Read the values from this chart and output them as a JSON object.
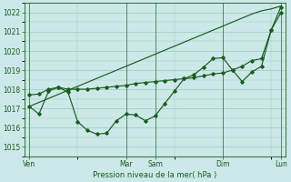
{
  "title": "Pression niveau de la mer( hPa )",
  "background_color": "#cce8e8",
  "grid_color": "#99ccbb",
  "line_color": "#1a5c20",
  "ylim": [
    1014.5,
    1022.5
  ],
  "yticks": [
    1015,
    1016,
    1017,
    1018,
    1019,
    1020,
    1021,
    1022
  ],
  "xtick_labels": [
    "Ven",
    "Mar",
    "Sam",
    "Dim",
    "Lun"
  ],
  "xtick_positions": [
    0,
    10,
    13,
    20,
    26
  ],
  "vline_positions": [
    0,
    10,
    13,
    20,
    26
  ],
  "n_points": 27,
  "line_straight": [
    1017.1,
    1017.31,
    1017.52,
    1017.73,
    1017.94,
    1018.15,
    1018.36,
    1018.57,
    1018.78,
    1018.99,
    1019.2,
    1019.41,
    1019.62,
    1019.83,
    1020.04,
    1020.25,
    1020.46,
    1020.67,
    1020.88,
    1021.09,
    1021.3,
    1021.51,
    1021.72,
    1021.93,
    1022.1,
    1022.2,
    1022.35
  ],
  "line_mid": [
    1017.7,
    1017.75,
    1018.0,
    1018.1,
    1018.0,
    1018.0,
    1018.0,
    1018.05,
    1018.1,
    1018.15,
    1018.2,
    1018.3,
    1018.35,
    1018.4,
    1018.45,
    1018.5,
    1018.55,
    1018.6,
    1018.7,
    1018.8,
    1018.85,
    1019.0,
    1019.2,
    1019.5,
    1019.6,
    1021.1,
    1022.0
  ],
  "line_dip": [
    1017.1,
    1016.7,
    1017.9,
    1018.1,
    1017.85,
    1016.3,
    1015.85,
    1015.65,
    1015.7,
    1016.35,
    1016.7,
    1016.65,
    1016.35,
    1016.6,
    1017.25,
    1017.9,
    1018.55,
    1018.75,
    1019.15,
    1019.6,
    1019.65,
    1019.0,
    1018.4,
    1018.9,
    1019.2,
    1021.1,
    1022.3
  ]
}
